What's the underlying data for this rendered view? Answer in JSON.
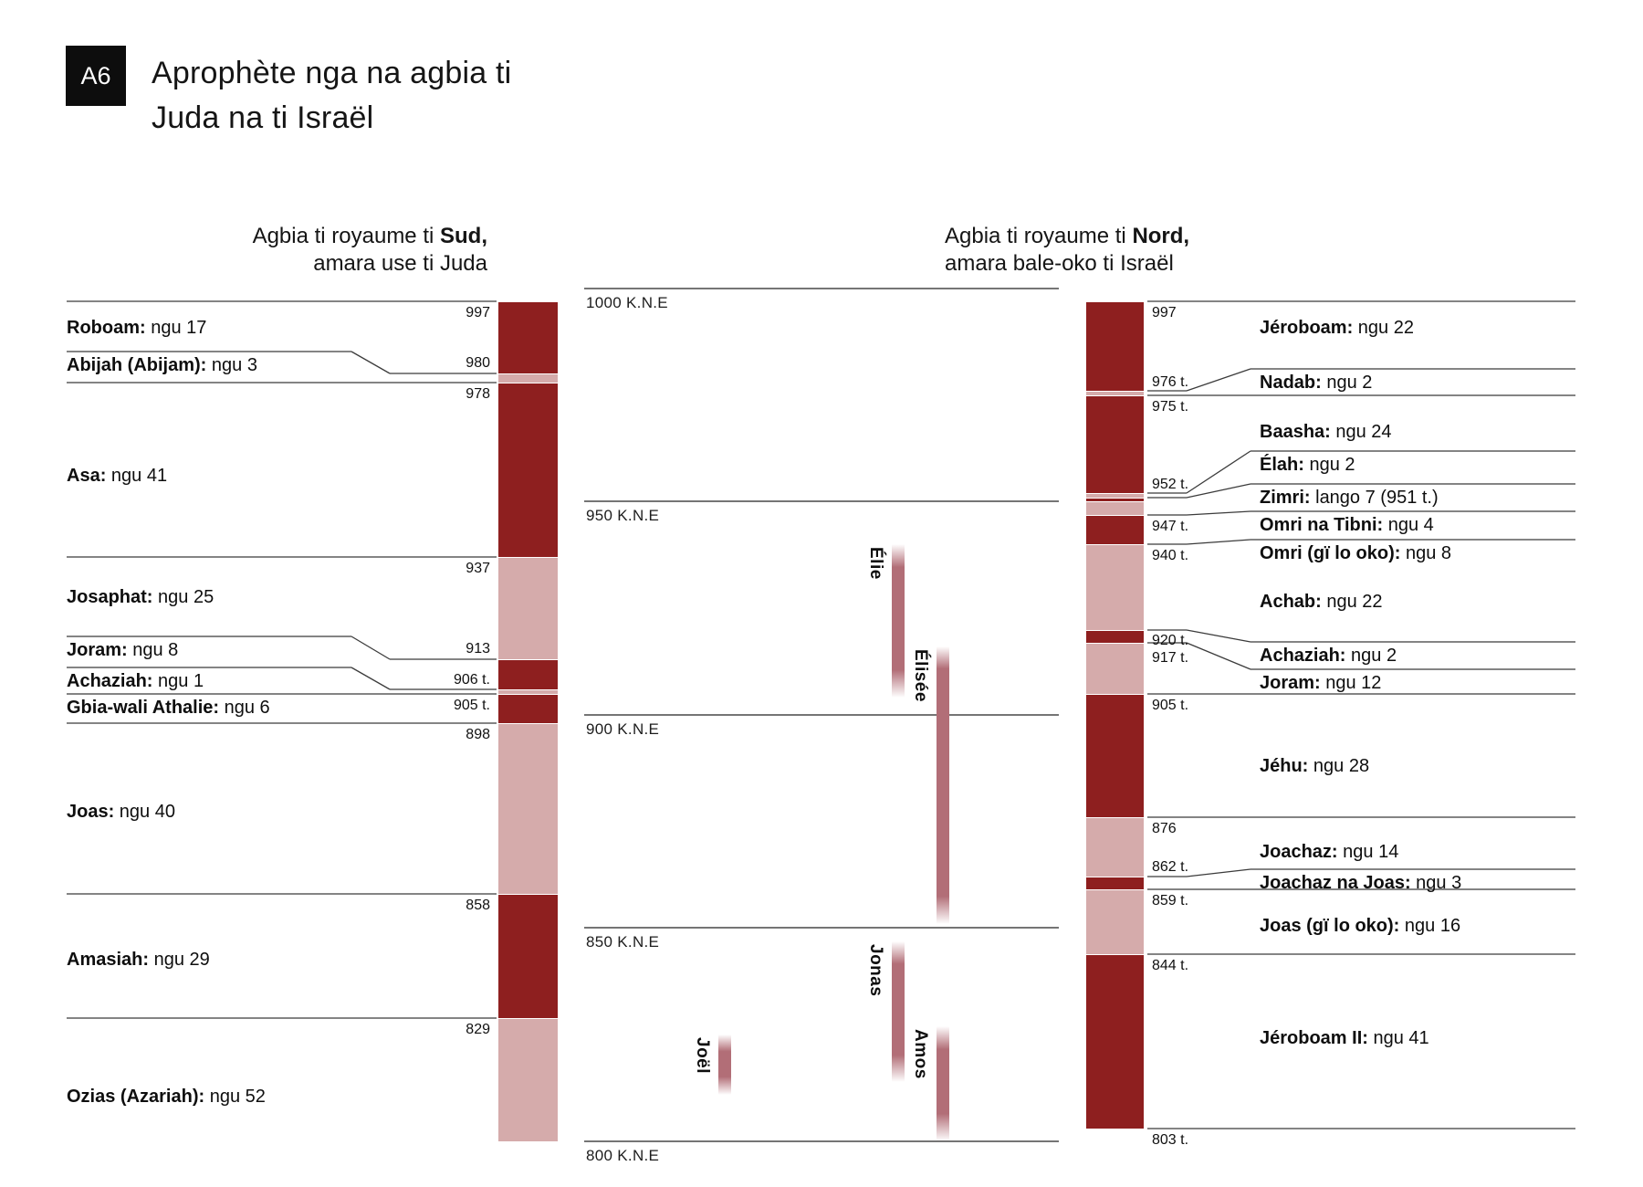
{
  "badge": {
    "label": "A6"
  },
  "title": {
    "line1": "Aprophète nga na agbia ti",
    "line2": "Juda na ti Israël"
  },
  "timeline": {
    "era_suffix": "K.N.E",
    "gridlines": [
      {
        "label": "1000 K.N.E",
        "year": 1000
      },
      {
        "label": "950 K.N.E",
        "year": 950
      },
      {
        "label": "900 K.N.E",
        "year": 900
      },
      {
        "label": "850 K.N.E",
        "year": 850
      },
      {
        "label": "800 K.N.E",
        "year": 800
      }
    ]
  },
  "south": {
    "header": {
      "prefix": "Agbia ti royaume ti ",
      "bold": "Sud,",
      "line2": "amara use ti Juda"
    },
    "kings": [
      {
        "name": "Roboam:",
        "detail": "ngu 17",
        "year_label": "997",
        "year": 997,
        "name_dy": 18
      },
      {
        "name": "Abijah (Abijam):",
        "detail": "ngu 3",
        "year_label": "980",
        "year": 980,
        "connector": true,
        "nl_dy": -24,
        "label_dy": -20
      },
      {
        "name": "Asa:",
        "detail": "ngu 41",
        "year_label": "978",
        "year": 978,
        "name_dy": 91
      },
      {
        "name": "Josaphat:",
        "detail": "ngu 25",
        "year_label": "937",
        "year": 937,
        "name_dy": 33
      },
      {
        "name": "Joram:",
        "detail": "ngu 8",
        "year_label": "913",
        "year": 913,
        "connector": true,
        "nl_dy": -25,
        "label_dy": -20
      },
      {
        "name": "Achaziah:",
        "detail": "ngu 1",
        "year_label": "906 t.",
        "year": 906,
        "connector": true,
        "nl_dy": -24,
        "label_dy": -19
      },
      {
        "name": "Gbia-wali Athalie:",
        "detail": "ngu 6",
        "year_label": "905 t.",
        "year": 905,
        "name_dy": 4,
        "label_dy": 4
      },
      {
        "name": "Joas:",
        "detail": "ngu 40",
        "year_label": "898",
        "year": 898,
        "name_dy": 86
      },
      {
        "name": "Amasiah:",
        "detail": "ngu 29",
        "year_label": "858",
        "year": 858,
        "name_dy": 61
      },
      {
        "name": "Ozias (Azariah):",
        "detail": "ngu 52",
        "year_label": "829",
        "year": 829,
        "name_dy": 75
      }
    ],
    "segments": [
      {
        "from": 997,
        "to": 980,
        "tone": "dark"
      },
      {
        "from": 980,
        "to": 978,
        "tone": "light"
      },
      {
        "from": 978,
        "to": 937,
        "tone": "dark"
      },
      {
        "from": 937,
        "to": 913,
        "tone": "light"
      },
      {
        "from": 913,
        "to": 906,
        "tone": "dark"
      },
      {
        "from": 906,
        "to": 905,
        "tone": "light"
      },
      {
        "from": 905,
        "to": 898,
        "tone": "dark"
      },
      {
        "from": 898,
        "to": 858,
        "tone": "light"
      },
      {
        "from": 858,
        "to": 829,
        "tone": "dark"
      },
      {
        "from": 829,
        "to": 800,
        "tone": "light"
      }
    ]
  },
  "north": {
    "header": {
      "prefix": "Agbia ti royaume ti ",
      "bold": "Nord,",
      "line2": "amara bale-oko ti Israël"
    },
    "kings": [
      {
        "name": "Jéroboam:",
        "detail": "ngu 22",
        "year_label": "997",
        "year": 997,
        "name_dy": 18
      },
      {
        "name": "Nadab:",
        "detail": "ngu 2",
        "year_label": "976 t.",
        "year": 976,
        "connector": true,
        "nl_dy": -24,
        "label_dy": -18
      },
      {
        "name": "Baasha:",
        "detail": "ngu 24",
        "year_label": "975 t.",
        "year": 975,
        "name_dy": 29
      },
      {
        "name": "Élah:",
        "detail": "ngu 2",
        "year_label": "952 t.",
        "year": 952,
        "connector": true,
        "nl_dy": -46,
        "label_dy": -18
      },
      {
        "name": "Zimri:",
        "detail": "lango 7 (951 t.)",
        "year_label": null,
        "year": 951,
        "connector": true,
        "nl_dy": -15
      },
      {
        "name": "Omri na Tibni:",
        "detail": "ngu 4",
        "year_label": "947 t.",
        "year": 947,
        "connector": true,
        "nl_dy": -4,
        "label_dy": 4
      },
      {
        "name": "Omri (gï lo oko):",
        "detail": "ngu 8",
        "year_label": "940 t.",
        "year": 940,
        "connector": true,
        "nl_dy": -5,
        "label_dy": 4
      },
      {
        "name": "Achab:",
        "detail": "ngu 22",
        "year_label": null,
        "year": 940,
        "floating": true,
        "name_dy": 52
      },
      {
        "name": "Achaziah:",
        "detail": "ngu 2",
        "year_label": "920 t.",
        "year": 920,
        "connector": true,
        "nl_dy": 13,
        "label_dy": 3
      },
      {
        "name": "Joram:",
        "detail": "ngu 12",
        "year_label": "917 t.",
        "year": 917,
        "connector": true,
        "nl_dy": 29,
        "label_dy": 8
      },
      {
        "name": "Jéhu:",
        "detail": "ngu 28",
        "year_label": "905 t.",
        "year": 905,
        "name_dy": 68
      },
      {
        "name": "Joachaz:",
        "detail": "ngu 14",
        "year_label": "876",
        "year": 876,
        "name_dy": 27
      },
      {
        "name": "Joachaz na Joas:",
        "detail": "ngu 3",
        "year_label": "862 t.",
        "year": 862,
        "connector": true,
        "nl_dy": -8,
        "label_dy": -19
      },
      {
        "name": "Joas (gï lo oko):",
        "detail": "ngu 16",
        "year_label": "859 t.",
        "year": 859,
        "name_dy": 29
      },
      {
        "name": "Jéroboam II:",
        "detail": "ngu 41",
        "year_label": "844 t.",
        "year": 844,
        "name_dy": 81
      }
    ],
    "end_marker": {
      "year": 803,
      "year_label": "803 t."
    },
    "segments": [
      {
        "from": 997,
        "to": 976,
        "tone": "dark"
      },
      {
        "from": 976,
        "to": 975,
        "tone": "light"
      },
      {
        "from": 975,
        "to": 952,
        "tone": "dark"
      },
      {
        "from": 952,
        "to": 951,
        "tone": "light"
      },
      {
        "from": 951,
        "to": 950.2,
        "tone": "dark"
      },
      {
        "from": 950.2,
        "to": 947,
        "tone": "light"
      },
      {
        "from": 947,
        "to": 940,
        "tone": "dark"
      },
      {
        "from": 940,
        "to": 920,
        "tone": "light"
      },
      {
        "from": 920,
        "to": 917,
        "tone": "dark"
      },
      {
        "from": 917,
        "to": 905,
        "tone": "light"
      },
      {
        "from": 905,
        "to": 876,
        "tone": "dark"
      },
      {
        "from": 876,
        "to": 862,
        "tone": "light"
      },
      {
        "from": 862,
        "to": 859,
        "tone": "dark"
      },
      {
        "from": 859,
        "to": 844,
        "tone": "light"
      },
      {
        "from": 844,
        "to": 803,
        "tone": "dark"
      }
    ]
  },
  "prophets": [
    {
      "name": "Élie",
      "from": 940,
      "to": 904,
      "col": "inner"
    },
    {
      "name": "Élisée",
      "from": 916,
      "to": 851,
      "col": "outer"
    },
    {
      "name": "Jonas",
      "from": 847,
      "to": 814,
      "col": "inner"
    },
    {
      "name": "Joël",
      "from": 825,
      "to": 811,
      "col": "left"
    },
    {
      "name": "Amos",
      "from": 827,
      "to": 800,
      "col": "outer"
    }
  ],
  "colors": {
    "dark_red": "#8e1f1f",
    "light_pink": "#d5abab",
    "prophet_rose": "#b26e77",
    "king_line": "#3b3b3b",
    "grid_line": "#757575"
  }
}
